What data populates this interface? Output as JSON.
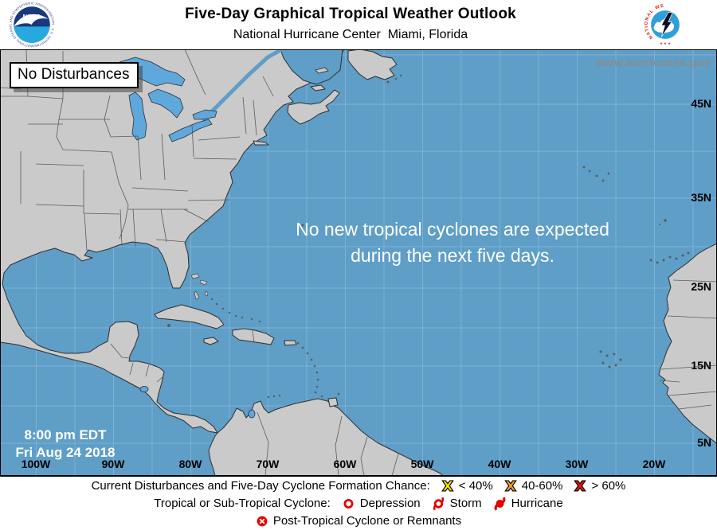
{
  "header": {
    "title": "Five-Day Graphical Tropical Weather Outlook",
    "subtitle": "National Hurricane Center  Miami, Florida"
  },
  "logos": {
    "noaa_text": "NOAA",
    "noaa_ring_text": "NATIONAL OCEANIC AND ATMOSPHERIC ADMINISTRATION · U.S. DEPARTMENT OF COMMERCE ·",
    "nws_ring_text": "NATIONAL WEATHER SERVICE",
    "nws_stars": "★ ★ ★"
  },
  "map": {
    "status_label": "No Disturbances",
    "watermark": "www.hurricanes.gov",
    "message": {
      "line1": "No new tropical cyclones are expected",
      "line2": "during the next five days."
    },
    "timestamp": {
      "line1": "8:00 pm EDT",
      "line2": "Fri Aug 24 2018"
    },
    "lat_labels": [
      "45N",
      "35N",
      "25N",
      "15N",
      "5N"
    ],
    "lon_labels": [
      "100W",
      "90W",
      "80W",
      "70W",
      "60W",
      "50W",
      "40W",
      "30W",
      "20W"
    ],
    "colors": {
      "ocean": "#5E9EC7",
      "land": "#CACACA",
      "lakes": "#5FA8DC",
      "grid": "#7FB2D4",
      "coast": "#2F2F2F",
      "borders": "#555555"
    }
  },
  "legend": {
    "symbol_red": "#E60000",
    "chance_colors": {
      "low": "#FFE600",
      "medium": "#FFA21F",
      "high": "#F11515"
    },
    "row1": {
      "label": "Current Disturbances and Five-Day Cyclone Formation Chance:",
      "items": [
        {
          "icon": "formation-chance-low-icon",
          "label": "< 40%"
        },
        {
          "icon": "formation-chance-medium-icon",
          "label": "40-60%"
        },
        {
          "icon": "formation-chance-high-icon",
          "label": "> 60%"
        }
      ]
    },
    "row2": {
      "label": "Tropical or Sub-Tropical Cyclone:",
      "items": [
        {
          "icon": "depression-icon",
          "label": "Depression"
        },
        {
          "icon": "storm-icon",
          "label": "Storm"
        },
        {
          "icon": "hurricane-icon",
          "label": "Hurricane"
        }
      ]
    },
    "row3": {
      "items": [
        {
          "icon": "post-tropical-icon",
          "label": "Post-Tropical Cyclone or Remnants"
        }
      ]
    }
  }
}
